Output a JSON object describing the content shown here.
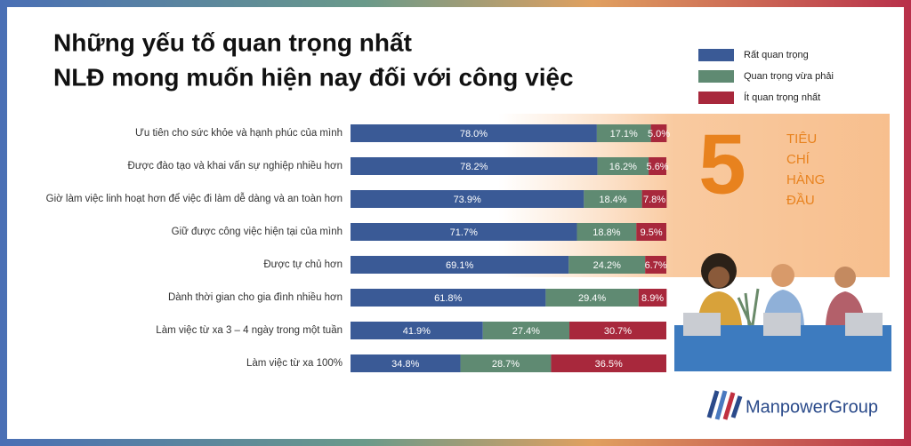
{
  "chart_data": {
    "type": "stacked-bar-horizontal",
    "title": [
      "Những yếu tố quan trọng nhất",
      "NLĐ mong muốn hiện nay đối với công việc"
    ],
    "categories": [
      "Ưu tiên cho sức khỏe và hạnh phúc của mình",
      "Được đào tạo và khai vấn sự nghiệp nhiều hơn",
      "Giờ làm việc linh hoạt hơn để việc đi làm dễ dàng và an toàn hơn",
      "Giữ được công việc hiện tại của mình",
      "Được tự chủ hơn",
      "Dành thời gian cho gia đình nhiều hơn",
      "Làm việc từ xa 3 – 4 ngày trong một tuần",
      "Làm việc từ xa 100%"
    ],
    "series": [
      {
        "name": "Rất quan trọng",
        "color": "#3a5a96",
        "values": [
          78.0,
          78.2,
          73.9,
          71.7,
          69.1,
          61.8,
          41.9,
          34.8
        ],
        "value_labels": [
          "78.0%",
          "78.2%",
          "73.9%",
          "71.7%",
          "69.1%",
          "61.8%",
          "41.9%",
          "34.8%"
        ]
      },
      {
        "name": "Quan trọng vừa phải",
        "color": "#5f8a72",
        "values": [
          17.1,
          16.2,
          18.4,
          18.8,
          24.2,
          29.4,
          27.4,
          28.7
        ],
        "value_labels": [
          "17.1%",
          "16.2%",
          "18.4%",
          "18.8%",
          "24.2%",
          "29.4%",
          "27.4%",
          "28.7%"
        ]
      },
      {
        "name": "Ít quan trọng nhất",
        "color": "#a8283c",
        "values": [
          5.0,
          5.6,
          7.8,
          9.5,
          6.7,
          8.9,
          30.7,
          36.5
        ],
        "value_labels": [
          "5.0%",
          "5.6%",
          "7.8%",
          "9.5%",
          "6.7%",
          "8.9%",
          "30.7%",
          "36.5%"
        ]
      }
    ],
    "xlim": [
      0,
      100
    ]
  },
  "badge": {
    "number": "5",
    "lines": [
      "TIÊU",
      "CHÍ",
      "HÀNG",
      "ĐẦU"
    ]
  },
  "logo": "ManpowerGroup"
}
